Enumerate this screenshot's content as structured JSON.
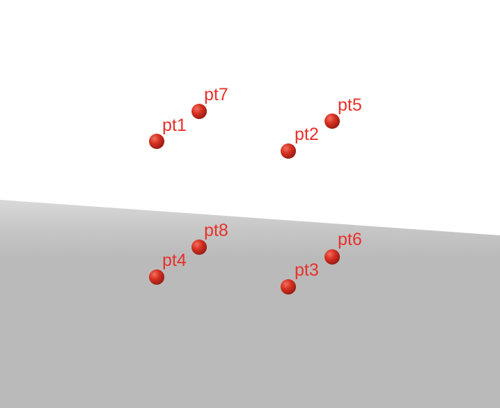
{
  "scene": {
    "background_color": "#ffffff",
    "ground_color": "#bababa",
    "point_color": "#d63022",
    "label_color": "#e8302a",
    "point_icon": "sphere-icon"
  },
  "points": [
    {
      "label": "pt1"
    },
    {
      "label": "pt7"
    },
    {
      "label": "pt2"
    },
    {
      "label": "pt5"
    },
    {
      "label": "pt8"
    },
    {
      "label": "pt4"
    },
    {
      "label": "pt6"
    },
    {
      "label": "pt3"
    }
  ]
}
